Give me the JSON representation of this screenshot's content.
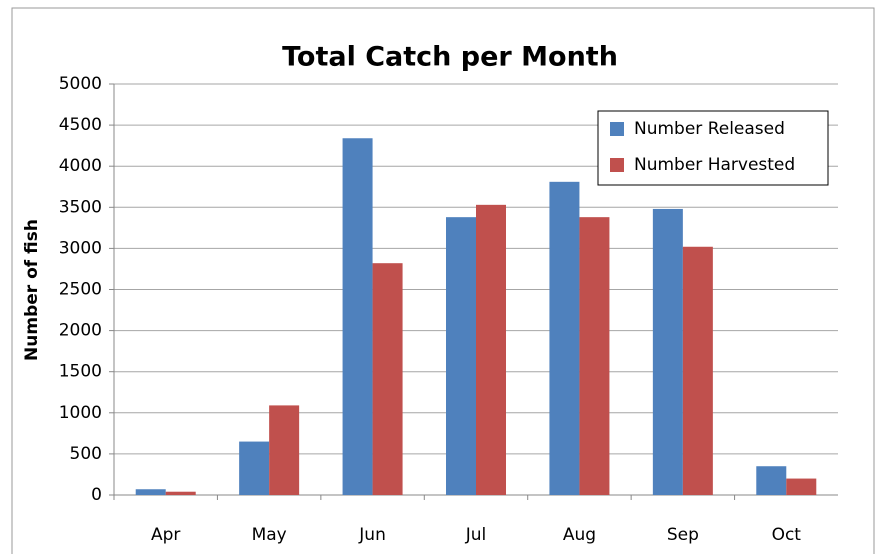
{
  "chart_data": {
    "type": "bar",
    "title": "Total Catch per Month",
    "y_label": "Number of fish",
    "categories": [
      "Apr",
      "May",
      "Jun",
      "Jul",
      "Aug",
      "Sep",
      "Oct"
    ],
    "series": [
      {
        "name": "Number Released",
        "color": "#4f81bd",
        "values": [
          70,
          650,
          4340,
          3380,
          3810,
          3480,
          350
        ]
      },
      {
        "name": "Number Harvested",
        "color": "#c0504d",
        "values": [
          40,
          1090,
          2820,
          3530,
          3380,
          3020,
          200
        ]
      }
    ],
    "ylim": [
      0,
      5000
    ],
    "yticks": [
      0,
      500,
      1000,
      1500,
      2000,
      2500,
      3000,
      3500,
      4000,
      4500,
      5000
    ],
    "grid": true,
    "legend": "upper right"
  }
}
